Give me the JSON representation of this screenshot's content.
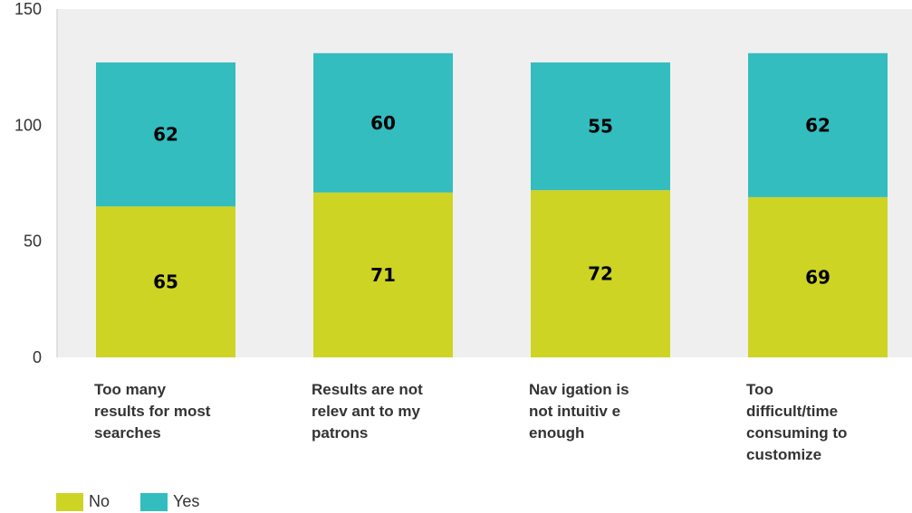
{
  "chart_data": {
    "type": "bar",
    "stacked": true,
    "categories": [
      "Too many results for most searches",
      "Results are not relevant to my patrons",
      "Navigation is not intuitive enough",
      "Too difficult/time consuming to customize"
    ],
    "series": [
      {
        "name": "No",
        "values": [
          65,
          71,
          72,
          69
        ],
        "color": "#cdd424"
      },
      {
        "name": "Yes",
        "values": [
          62,
          60,
          55,
          62
        ],
        "color": "#33bdbf"
      }
    ],
    "ylim": [
      0,
      150
    ],
    "yticks": [
      0,
      50,
      100,
      150
    ],
    "grid": false,
    "plot_background": "#efefef",
    "legend_position": "bottom-left"
  },
  "x_labels": [
    [
      "Too many",
      "results for most",
      "searches"
    ],
    [
      "Results are not",
      "relev ant to my",
      "patrons"
    ],
    [
      "Nav igation is",
      "not intuitiv e",
      "enough"
    ],
    [
      "Too",
      "difficult/time",
      "consuming to",
      "customize"
    ]
  ],
  "legend": {
    "no_label": "No",
    "yes_label": "Yes"
  }
}
